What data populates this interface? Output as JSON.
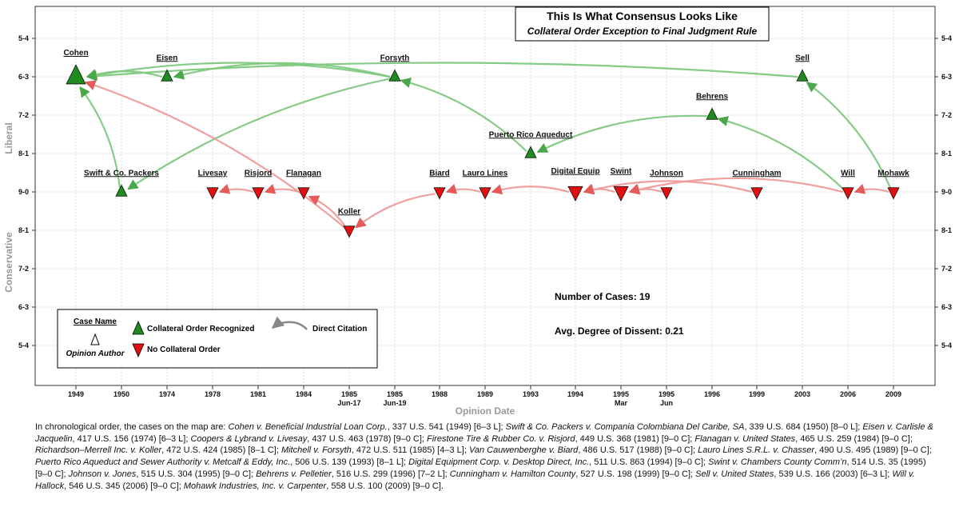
{
  "chart_data": {
    "type": "scatter",
    "title": "This Is What Consensus Looks Like",
    "subtitle": "Collateral Order Exception to Final Judgment Rule",
    "xlabel": "Opinion Date",
    "ylabel_top": "Liberal",
    "ylabel_bottom": "Conservative",
    "x_ticks": [
      {
        "label": "1949",
        "sub": ""
      },
      {
        "label": "1950",
        "sub": ""
      },
      {
        "label": "1974",
        "sub": ""
      },
      {
        "label": "1978",
        "sub": ""
      },
      {
        "label": "1981",
        "sub": ""
      },
      {
        "label": "1984",
        "sub": ""
      },
      {
        "label": "1985",
        "sub": "Jun-17"
      },
      {
        "label": "1985",
        "sub": "Jun-19"
      },
      {
        "label": "1988",
        "sub": ""
      },
      {
        "label": "1989",
        "sub": ""
      },
      {
        "label": "1993",
        "sub": ""
      },
      {
        "label": "1994",
        "sub": ""
      },
      {
        "label": "1995",
        "sub": "Mar"
      },
      {
        "label": "1995",
        "sub": "Jun"
      },
      {
        "label": "1996",
        "sub": ""
      },
      {
        "label": "1999",
        "sub": ""
      },
      {
        "label": "2003",
        "sub": ""
      },
      {
        "label": "2006",
        "sub": ""
      },
      {
        "label": "2009",
        "sub": ""
      }
    ],
    "y_ticks": [
      "5-4",
      "6-3",
      "7-2",
      "8-1",
      "9-0",
      "8-1",
      "7-2",
      "6-3",
      "5-4"
    ],
    "series": [
      {
        "name": "Collateral Order Recognized",
        "color": "#1f8a1f"
      },
      {
        "name": "No Collateral Order",
        "color": "#e01010"
      }
    ],
    "cases": [
      {
        "name": "Cohen",
        "x": 0,
        "y": 1,
        "recognized": true,
        "size": "large"
      },
      {
        "name": "Swift & Co. Packers",
        "x": 1,
        "y": 4,
        "recognized": true,
        "size": "small"
      },
      {
        "name": "Eisen",
        "x": 2,
        "y": 1,
        "recognized": true,
        "size": "small"
      },
      {
        "name": "Livesay",
        "x": 3,
        "y": 4,
        "recognized": false,
        "size": "small"
      },
      {
        "name": "Risjord",
        "x": 4,
        "y": 4,
        "recognized": false,
        "size": "small"
      },
      {
        "name": "Flanagan",
        "x": 5,
        "y": 4,
        "recognized": false,
        "size": "small"
      },
      {
        "name": "Koller",
        "x": 6,
        "y": 5,
        "recognized": false,
        "size": "small"
      },
      {
        "name": "Forsyth",
        "x": 7,
        "y": 1,
        "recognized": true,
        "size": "small"
      },
      {
        "name": "Biard",
        "x": 8,
        "y": 4,
        "recognized": false,
        "size": "small"
      },
      {
        "name": "Lauro Lines",
        "x": 9,
        "y": 4,
        "recognized": false,
        "size": "small"
      },
      {
        "name": "Puerto Rico Aqueduct",
        "x": 10,
        "y": 3,
        "recognized": true,
        "size": "small"
      },
      {
        "name": "Digital Equip",
        "x": 11,
        "y": 4,
        "recognized": false,
        "size": "medium"
      },
      {
        "name": "Swint",
        "x": 12,
        "y": 4,
        "recognized": false,
        "size": "medium"
      },
      {
        "name": "Johnson",
        "x": 13,
        "y": 4,
        "recognized": false,
        "size": "small"
      },
      {
        "name": "Behrens",
        "x": 14,
        "y": 2,
        "recognized": true,
        "size": "small"
      },
      {
        "name": "Cunningham",
        "x": 15,
        "y": 4,
        "recognized": false,
        "size": "small"
      },
      {
        "name": "Sell",
        "x": 16,
        "y": 1,
        "recognized": true,
        "size": "small"
      },
      {
        "name": "Will",
        "x": 17,
        "y": 4,
        "recognized": false,
        "size": "small"
      },
      {
        "name": "Mohawk",
        "x": 18,
        "y": 4,
        "recognized": false,
        "size": "small"
      }
    ],
    "citations": [
      {
        "from": "Swift & Co. Packers",
        "to": "Cohen",
        "type": "recognized"
      },
      {
        "from": "Eisen",
        "to": "Cohen",
        "type": "recognized"
      },
      {
        "from": "Forsyth",
        "to": "Cohen",
        "type": "recognized"
      },
      {
        "from": "Forsyth",
        "to": "Eisen",
        "type": "recognized"
      },
      {
        "from": "Forsyth",
        "to": "Swift & Co. Packers",
        "type": "recognized"
      },
      {
        "from": "Puerto Rico Aqueduct",
        "to": "Forsyth",
        "type": "recognized"
      },
      {
        "from": "Behrens",
        "to": "Puerto Rico Aqueduct",
        "type": "recognized"
      },
      {
        "from": "Sell",
        "to": "Cohen",
        "type": "recognized"
      },
      {
        "from": "Mohawk",
        "to": "Sell",
        "type": "recognized"
      },
      {
        "from": "Will",
        "to": "Behrens",
        "type": "recognized"
      },
      {
        "from": "Koller",
        "to": "Cohen",
        "type": "denied"
      },
      {
        "from": "Risjord",
        "to": "Livesay",
        "type": "denied"
      },
      {
        "from": "Flanagan",
        "to": "Risjord",
        "type": "denied"
      },
      {
        "from": "Koller",
        "to": "Flanagan",
        "type": "denied"
      },
      {
        "from": "Biard",
        "to": "Koller",
        "type": "denied"
      },
      {
        "from": "Lauro Lines",
        "to": "Biard",
        "type": "denied"
      },
      {
        "from": "Digital Equip",
        "to": "Lauro Lines",
        "type": "denied"
      },
      {
        "from": "Swint",
        "to": "Digital Equip",
        "type": "denied"
      },
      {
        "from": "Johnson",
        "to": "Swint",
        "type": "denied"
      },
      {
        "from": "Cunningham",
        "to": "Digital Equip",
        "type": "denied"
      },
      {
        "from": "Will",
        "to": "Swint",
        "type": "denied"
      },
      {
        "from": "Mohawk",
        "to": "Will",
        "type": "denied"
      }
    ],
    "stats": {
      "cases": "Number of Cases: 19",
      "dissent": "Avg. Degree of Dissent: 0.21"
    },
    "legend": {
      "case_name": "Case Name",
      "opinion_author": "Opinion Author",
      "recognized": "Collateral Order Recognized",
      "not_recognized": "No Collateral Order",
      "citation": "Direct Citation"
    }
  },
  "caption": {
    "intro": "In chronological order, the cases on the map are:",
    "cases": [
      {
        "name": "Cohen v. Beneficial Industrial Loan Corp.",
        "cite": ", 337 U.S. 541 (1949) [6–3 L];"
      },
      {
        "name": "Swift & Co. Packers v. Compania Colombiana Del Caribe, SA",
        "cite": ", 339 U.S. 684 (1950) [8–0 L];"
      },
      {
        "name": "Eisen v. Carlisle & Jacquelin",
        "cite": ", 417 U.S. 156 (1974) [6–3 L];"
      },
      {
        "name": "Coopers & Lybrand v. Livesay",
        "cite": ", 437 U.S. 463 (1978) [9–0 C];"
      },
      {
        "name": "Firestone Tire & Rubber Co. v. Risjord",
        "cite": ", 449 U.S. 368 (1981) [9–0 C];"
      },
      {
        "name": "Flanagan v. United States",
        "cite": ", 465 U.S. 259 (1984) [9–0 C];"
      },
      {
        "name": "Richardson–Merrell Inc. v. Koller",
        "cite": ", 472 U.S. 424 (1985) [8–1 C];"
      },
      {
        "name": "Mitchell v. Forsyth",
        "cite": ", 472 U.S. 511 (1985) [4–3 L];"
      },
      {
        "name": "Van Cauwenberghe v. Biard",
        "cite": ", 486 U.S. 517 (1988) [9–0 C];"
      },
      {
        "name": "Lauro Lines S.R.L. v. Chasser",
        "cite": ", 490 U.S. 495 (1989) [9–0 C];"
      },
      {
        "name": "Puerto Rico Aqueduct and Sewer Authority v. Metcalf & Eddy, Inc.",
        "cite": ", 506 U.S. 139 (1993) [8–1 L];"
      },
      {
        "name": "Digital Equipment Corp. v. Desktop Direct, Inc.",
        "cite": ", 511 U.S. 863 (1994) [9–0 C];"
      },
      {
        "name": "Swint v. Chambers County Comm’n",
        "cite": ", 514 U.S. 35 (1995) [9–0 C];"
      },
      {
        "name": "Johnson v. Jones",
        "cite": ", 515 U.S. 304 (1995) [9–0 C];"
      },
      {
        "name": "Behrens v. Pelletier",
        "cite": ", 516 U.S. 299 (1996) [7–2 L];"
      },
      {
        "name": "Cunningham v. Hamilton County",
        "cite": ", 527 U.S. 198 (1999) [9–0 C];"
      },
      {
        "name": "Sell v. United States",
        "cite": ", 539 U.S. 166 (2003) [6–3 L];"
      },
      {
        "name": "Will v. Hallock",
        "cite": ", 546 U.S. 345 (2006) [9–0 C];"
      },
      {
        "name": "Mohawk Industries, Inc. v. Carpenter",
        "cite": ", 558 U.S. 100 (2009) [9–0 C]."
      }
    ]
  }
}
